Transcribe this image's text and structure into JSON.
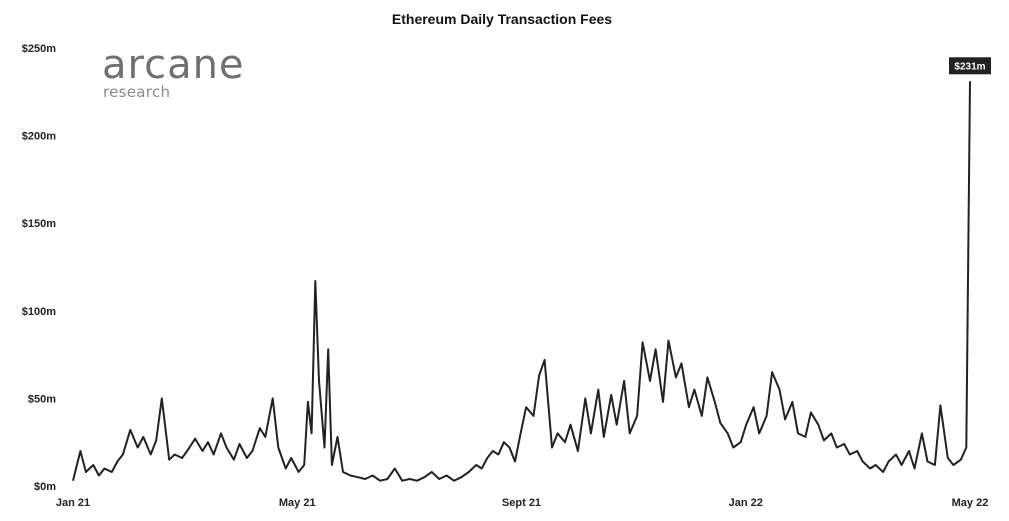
{
  "chart_data": {
    "type": "line",
    "title": "Ethereum Daily Transaction Fees",
    "xlabel": "",
    "ylabel": "",
    "ylim": [
      0,
      250
    ],
    "yticks": [
      "$0m",
      "$50m",
      "$100m",
      "$150m",
      "$200m",
      "$250m"
    ],
    "xticks": [
      "Jan 21",
      "May 21",
      "Sept 21",
      "Jan 22",
      "May 22"
    ],
    "xlim": [
      "2021-01-01",
      "2022-05-01"
    ],
    "grid": false,
    "legend": "none",
    "line_color": "#222222",
    "logo": {
      "main": "arcane",
      "sub": "research"
    },
    "annotation": {
      "date": "2022-05-01",
      "value": 231,
      "label": "$231m"
    },
    "series": [
      {
        "x": [
          "2021-01-01",
          "2021-01-05",
          "2021-01-08",
          "2021-01-12",
          "2021-01-15",
          "2021-01-18",
          "2021-01-22",
          "2021-01-25",
          "2021-01-28",
          "2021-02-01",
          "2021-02-05",
          "2021-02-08",
          "2021-02-12",
          "2021-02-15",
          "2021-02-18",
          "2021-02-22",
          "2021-02-25",
          "2021-03-01",
          "2021-03-05",
          "2021-03-08",
          "2021-03-12",
          "2021-03-15",
          "2021-03-18",
          "2021-03-22",
          "2021-03-25",
          "2021-03-29",
          "2021-04-01",
          "2021-04-05",
          "2021-04-08",
          "2021-04-12",
          "2021-04-15",
          "2021-04-19",
          "2021-04-22",
          "2021-04-26",
          "2021-04-29",
          "2021-05-03",
          "2021-05-06",
          "2021-05-08",
          "2021-05-10",
          "2021-05-12",
          "2021-05-14",
          "2021-05-17",
          "2021-05-19",
          "2021-05-21",
          "2021-05-24",
          "2021-05-27",
          "2021-05-31",
          "2021-06-04",
          "2021-06-08",
          "2021-06-12",
          "2021-06-16",
          "2021-06-20",
          "2021-06-24",
          "2021-06-28",
          "2021-07-02",
          "2021-07-06",
          "2021-07-10",
          "2021-07-14",
          "2021-07-18",
          "2021-07-22",
          "2021-07-26",
          "2021-07-30",
          "2021-08-03",
          "2021-08-07",
          "2021-08-10",
          "2021-08-13",
          "2021-08-16",
          "2021-08-19",
          "2021-08-22",
          "2021-08-25",
          "2021-08-28",
          "2021-08-31",
          "2021-09-03",
          "2021-09-07",
          "2021-09-10",
          "2021-09-13",
          "2021-09-17",
          "2021-09-20",
          "2021-09-24",
          "2021-09-27",
          "2021-10-01",
          "2021-10-05",
          "2021-10-08",
          "2021-10-12",
          "2021-10-15",
          "2021-10-19",
          "2021-10-22",
          "2021-10-26",
          "2021-10-29",
          "2021-11-02",
          "2021-11-05",
          "2021-11-09",
          "2021-11-12",
          "2021-11-16",
          "2021-11-19",
          "2021-11-23",
          "2021-11-26",
          "2021-11-30",
          "2021-12-03",
          "2021-12-07",
          "2021-12-10",
          "2021-12-14",
          "2021-12-17",
          "2021-12-21",
          "2021-12-24",
          "2021-12-28",
          "2021-12-31",
          "2022-01-04",
          "2022-01-07",
          "2022-01-11",
          "2022-01-14",
          "2022-01-18",
          "2022-01-21",
          "2022-01-25",
          "2022-01-28",
          "2022-02-01",
          "2022-02-04",
          "2022-02-08",
          "2022-02-11",
          "2022-02-15",
          "2022-02-18",
          "2022-02-22",
          "2022-02-25",
          "2022-03-01",
          "2022-03-04",
          "2022-03-08",
          "2022-03-11",
          "2022-03-15",
          "2022-03-18",
          "2022-03-22",
          "2022-03-25",
          "2022-03-29",
          "2022-04-01",
          "2022-04-05",
          "2022-04-08",
          "2022-04-12",
          "2022-04-15",
          "2022-04-19",
          "2022-04-22",
          "2022-04-26",
          "2022-04-29",
          "2022-05-01"
        ],
        "values": [
          3,
          20,
          8,
          12,
          6,
          10,
          8,
          14,
          18,
          32,
          22,
          28,
          18,
          26,
          50,
          15,
          18,
          16,
          22,
          27,
          20,
          25,
          18,
          30,
          22,
          15,
          24,
          16,
          20,
          33,
          28,
          50,
          22,
          10,
          16,
          8,
          12,
          48,
          30,
          117,
          60,
          22,
          78,
          12,
          28,
          8,
          6,
          5,
          4,
          6,
          3,
          4,
          10,
          3,
          4,
          3,
          5,
          8,
          4,
          6,
          3,
          5,
          8,
          12,
          10,
          16,
          20,
          18,
          25,
          22,
          14,
          30,
          45,
          40,
          63,
          72,
          22,
          30,
          25,
          35,
          20,
          50,
          30,
          55,
          28,
          52,
          35,
          60,
          30,
          40,
          82,
          60,
          78,
          48,
          83,
          62,
          70,
          45,
          55,
          40,
          62,
          48,
          36,
          30,
          22,
          25,
          35,
          45,
          30,
          40,
          65,
          55,
          38,
          48,
          30,
          28,
          42,
          35,
          26,
          30,
          22,
          24,
          18,
          20,
          14,
          10,
          12,
          8,
          14,
          18,
          12,
          20,
          10,
          30,
          14,
          12,
          46,
          16,
          12,
          15,
          22,
          231
        ]
      }
    ]
  }
}
